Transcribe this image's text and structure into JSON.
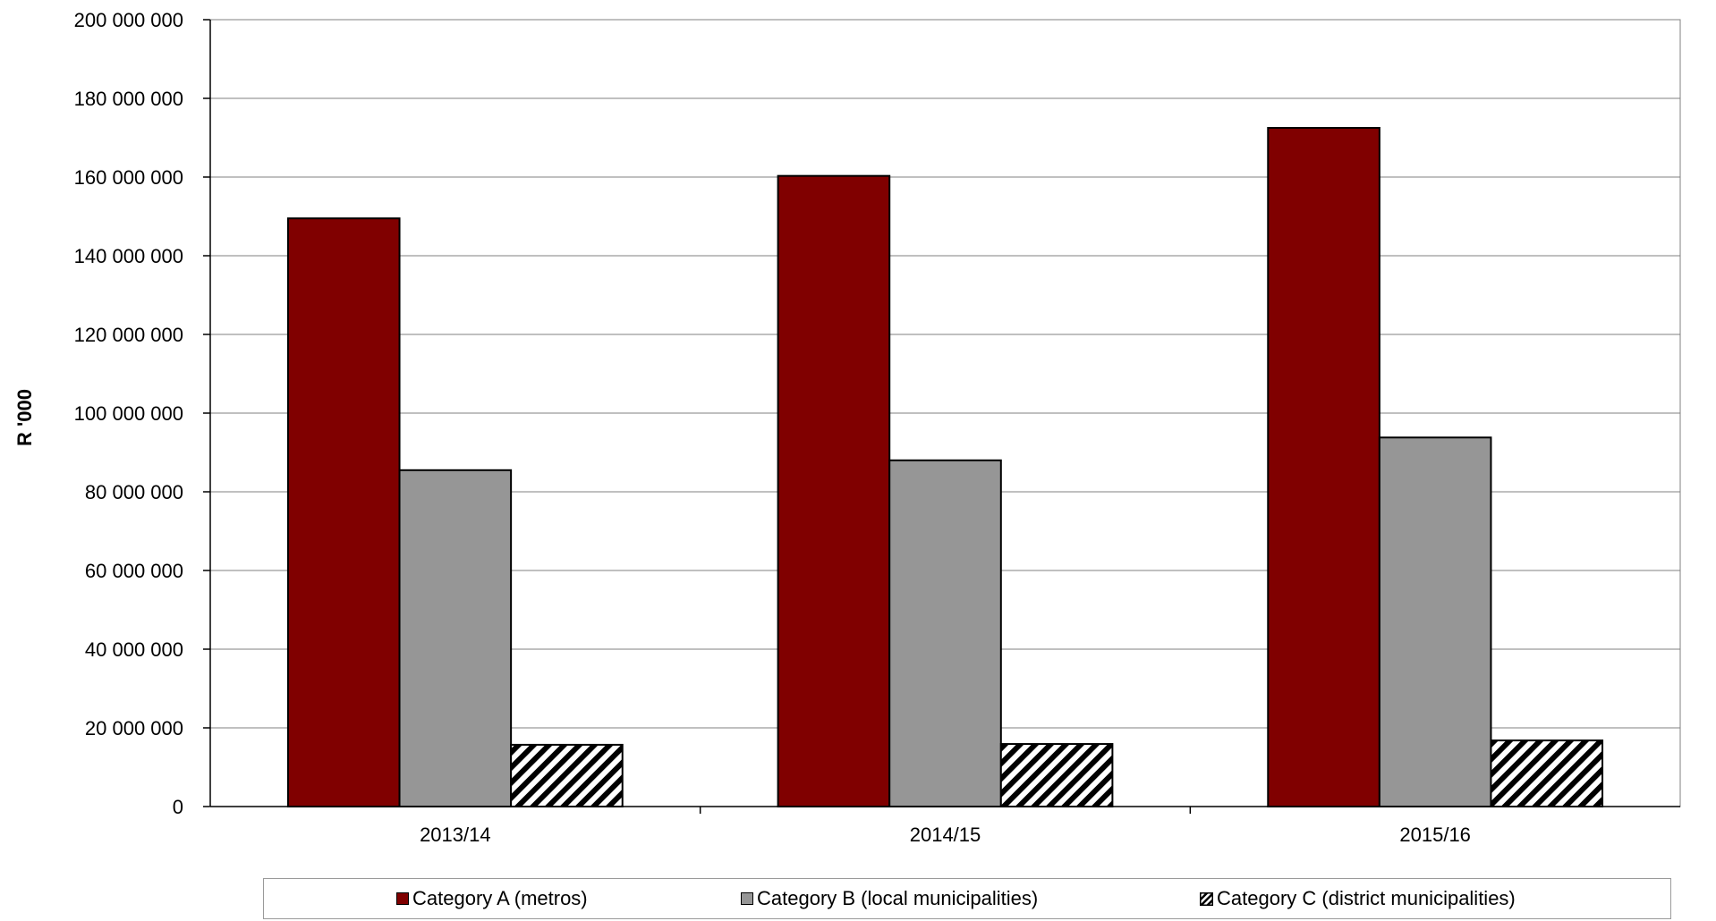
{
  "chart_data": {
    "type": "bar",
    "title": "",
    "xlabel": "",
    "ylabel": "R '000",
    "categories": [
      "2013/14",
      "2014/15",
      "2015/16"
    ],
    "series": [
      {
        "name": "Category A (metros)",
        "values": [
          149500000,
          160300000,
          172500000
        ],
        "color": "#800000",
        "pattern": "solid"
      },
      {
        "name": "Category B (local municipalities)",
        "values": [
          85500000,
          88000000,
          93800000
        ],
        "color": "#969696",
        "pattern": "solid"
      },
      {
        "name": "Category C (district municipalities)",
        "values": [
          15700000,
          15900000,
          16800000
        ],
        "color": "#000000",
        "pattern": "diagonal-hatch"
      }
    ],
    "ylim": [
      0,
      200000000
    ],
    "yticks": [
      0,
      20000000,
      40000000,
      60000000,
      80000000,
      100000000,
      120000000,
      140000000,
      160000000,
      180000000,
      200000000
    ],
    "ytick_labels": [
      "0",
      "20 000 000",
      "40 000 000",
      "60 000 000",
      "80 000 000",
      "100 000 000",
      "120 000 000",
      "140 000 000",
      "160 000 000",
      "180 000 000",
      "200 000 000"
    ],
    "grid": true,
    "legend_position": "bottom"
  }
}
